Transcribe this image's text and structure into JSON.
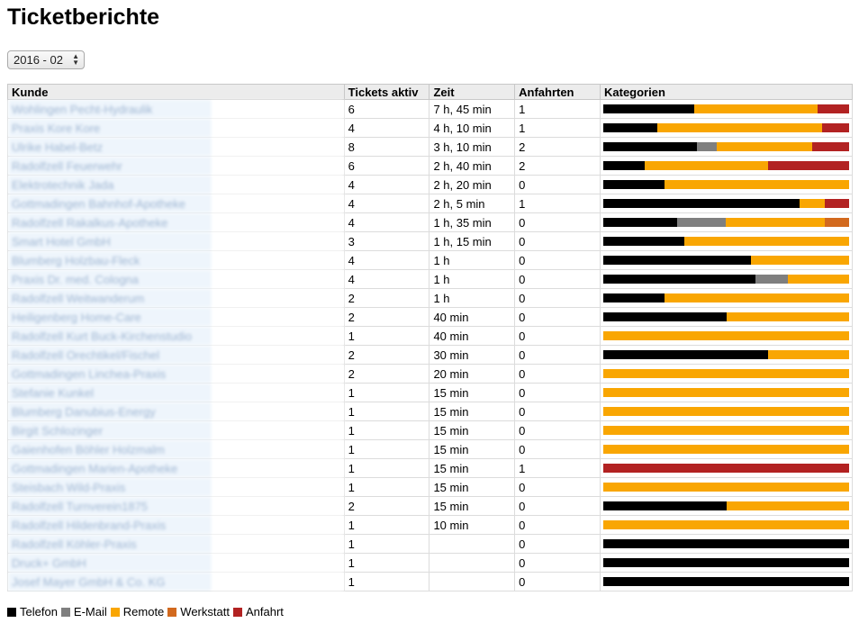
{
  "page": {
    "title": "Ticketberichte"
  },
  "period_select": {
    "value": "2016 - 02"
  },
  "table": {
    "headers": {
      "kunde": "Kunde",
      "tickets": "Tickets aktiv",
      "zeit": "Zeit",
      "anfahrten": "Anfahrten",
      "kategorien": "Kategorien"
    },
    "rows": [
      {
        "kunde": "Wohlingen Pecht-Hydraulik",
        "tickets": "6",
        "zeit": "7 h, 45 min",
        "anfahrten": "1",
        "bar": [
          [
            0.37,
            "telefon"
          ],
          [
            0.5,
            "remote"
          ],
          [
            0.13,
            "anfahrt"
          ]
        ]
      },
      {
        "kunde": "Praxis Kore Kore",
        "tickets": "4",
        "zeit": "4 h, 10 min",
        "anfahrten": "1",
        "bar": [
          [
            0.22,
            "telefon"
          ],
          [
            0.67,
            "remote"
          ],
          [
            0.11,
            "anfahrt"
          ]
        ]
      },
      {
        "kunde": "Ulrike Habel-Betz",
        "tickets": "8",
        "zeit": "3 h, 10 min",
        "anfahrten": "2",
        "bar": [
          [
            0.38,
            "telefon"
          ],
          [
            0.08,
            "email"
          ],
          [
            0.39,
            "remote"
          ],
          [
            0.15,
            "anfahrt"
          ]
        ]
      },
      {
        "kunde": "Radolfzell Feuerwehr",
        "tickets": "6",
        "zeit": "2 h, 40 min",
        "anfahrten": "2",
        "bar": [
          [
            0.17,
            "telefon"
          ],
          [
            0.5,
            "remote"
          ],
          [
            0.33,
            "anfahrt"
          ]
        ]
      },
      {
        "kunde": "Elektrotechnik Jada",
        "tickets": "4",
        "zeit": "2 h, 20 min",
        "anfahrten": "0",
        "bar": [
          [
            0.25,
            "telefon"
          ],
          [
            0.75,
            "remote"
          ]
        ]
      },
      {
        "kunde": "Gottmadingen Bahnhof-Apotheke",
        "tickets": "4",
        "zeit": "2 h, 5 min",
        "anfahrten": "1",
        "bar": [
          [
            0.8,
            "telefon"
          ],
          [
            0.1,
            "remote"
          ],
          [
            0.1,
            "anfahrt"
          ]
        ]
      },
      {
        "kunde": "Radolfzell Rakalkus-Apotheke",
        "tickets": "4",
        "zeit": "1 h, 35 min",
        "anfahrten": "0",
        "bar": [
          [
            0.3,
            "telefon"
          ],
          [
            0.2,
            "email"
          ],
          [
            0.4,
            "remote"
          ],
          [
            0.1,
            "werkstatt"
          ]
        ]
      },
      {
        "kunde": "Smart Hotel GmbH",
        "tickets": "3",
        "zeit": "1 h, 15 min",
        "anfahrten": "0",
        "bar": [
          [
            0.33,
            "telefon"
          ],
          [
            0.67,
            "remote"
          ]
        ]
      },
      {
        "kunde": "Blumberg Holzbau-Fleck",
        "tickets": "4",
        "zeit": "1 h",
        "anfahrten": "0",
        "bar": [
          [
            0.6,
            "telefon"
          ],
          [
            0.4,
            "remote"
          ]
        ]
      },
      {
        "kunde": "Praxis Dr. med. Cologna",
        "tickets": "4",
        "zeit": "1 h",
        "anfahrten": "0",
        "bar": [
          [
            0.62,
            "telefon"
          ],
          [
            0.13,
            "email"
          ],
          [
            0.25,
            "remote"
          ]
        ]
      },
      {
        "kunde": "Radolfzell Weitwanderum",
        "tickets": "2",
        "zeit": "1 h",
        "anfahrten": "0",
        "bar": [
          [
            0.25,
            "telefon"
          ],
          [
            0.75,
            "remote"
          ]
        ]
      },
      {
        "kunde": "Heiligenberg Home-Care",
        "tickets": "2",
        "zeit": "40 min",
        "anfahrten": "0",
        "bar": [
          [
            0.5,
            "telefon"
          ],
          [
            0.5,
            "remote"
          ]
        ]
      },
      {
        "kunde": "Radolfzell Kurt Buck-Kirchenstudio",
        "tickets": "1",
        "zeit": "40 min",
        "anfahrten": "0",
        "bar": [
          [
            1,
            "remote"
          ]
        ]
      },
      {
        "kunde": "Radolfzell Orechtikel/Fischel",
        "tickets": "2",
        "zeit": "30 min",
        "anfahrten": "0",
        "bar": [
          [
            0.67,
            "telefon"
          ],
          [
            0.33,
            "remote"
          ]
        ]
      },
      {
        "kunde": "Gottmadingen Linchea-Praxis",
        "tickets": "2",
        "zeit": "20 min",
        "anfahrten": "0",
        "bar": [
          [
            1,
            "remote"
          ]
        ]
      },
      {
        "kunde": "Stefanie Kunkel",
        "tickets": "1",
        "zeit": "15 min",
        "anfahrten": "0",
        "bar": [
          [
            1,
            "remote"
          ]
        ]
      },
      {
        "kunde": "Blumberg Danubius-Energy",
        "tickets": "1",
        "zeit": "15 min",
        "anfahrten": "0",
        "bar": [
          [
            1,
            "remote"
          ]
        ]
      },
      {
        "kunde": "Birgit Schlozinger",
        "tickets": "1",
        "zeit": "15 min",
        "anfahrten": "0",
        "bar": [
          [
            1,
            "remote"
          ]
        ]
      },
      {
        "kunde": "Gaienhofen Böhler Holzmalm",
        "tickets": "1",
        "zeit": "15 min",
        "anfahrten": "0",
        "bar": [
          [
            1,
            "remote"
          ]
        ]
      },
      {
        "kunde": "Gottmadingen Marien-Apotheke",
        "tickets": "1",
        "zeit": "15 min",
        "anfahrten": "1",
        "bar": [
          [
            1,
            "anfahrt"
          ]
        ]
      },
      {
        "kunde": "Steisbach Wild-Praxis",
        "tickets": "1",
        "zeit": "15 min",
        "anfahrten": "0",
        "bar": [
          [
            1,
            "remote"
          ]
        ]
      },
      {
        "kunde": "Radolfzell Turnverein1875",
        "tickets": "2",
        "zeit": "15 min",
        "anfahrten": "0",
        "bar": [
          [
            0.5,
            "telefon"
          ],
          [
            0.5,
            "remote"
          ]
        ]
      },
      {
        "kunde": "Radolfzell Hildenbrand-Praxis",
        "tickets": "1",
        "zeit": "10 min",
        "anfahrten": "0",
        "bar": [
          [
            1,
            "remote"
          ]
        ]
      },
      {
        "kunde": "Radolfzell Köhler-Praxis",
        "tickets": "1",
        "zeit": "",
        "anfahrten": "0",
        "bar": [
          [
            1,
            "telefon"
          ]
        ]
      },
      {
        "kunde": "Druck+ GmbH",
        "tickets": "1",
        "zeit": "",
        "anfahrten": "0",
        "bar": [
          [
            1,
            "telefon"
          ]
        ]
      },
      {
        "kunde": "Josef Mayer GmbH & Co. KG",
        "tickets": "1",
        "zeit": "",
        "anfahrten": "0",
        "bar": [
          [
            1,
            "telefon"
          ]
        ]
      }
    ]
  },
  "legend": [
    {
      "key": "telefon",
      "label": "Telefon",
      "color": "#000000"
    },
    {
      "key": "email",
      "label": "E-Mail",
      "color": "#7f7f7f"
    },
    {
      "key": "remote",
      "label": "Remote",
      "color": "#f9a602"
    },
    {
      "key": "werkstatt",
      "label": "Werkstatt",
      "color": "#d2691e"
    },
    {
      "key": "anfahrt",
      "label": "Anfahrt",
      "color": "#b22222"
    }
  ]
}
